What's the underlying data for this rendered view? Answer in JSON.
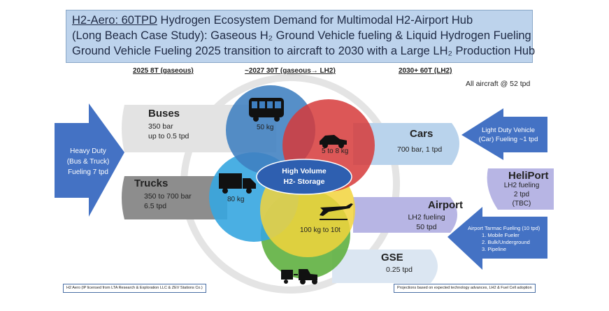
{
  "title": {
    "line1_underlined": "H2-Aero: 60TPD",
    "line1_rest": " Hydrogen Ecosystem Demand for Multimodal H2-Airport Hub",
    "line2": "(Long Beach Case Study): Gaseous H₂ Ground Vehicle fueling & Liquid Hydrogen Fueling",
    "line3": "Ground Vehicle Fueling 2025 transition to aircraft to 2030 with a Large LH₂ Production Hub"
  },
  "timeline": {
    "h1": "2025 8T (gaseous)",
    "h2": "~2027 30T (gaseous→ LH2)",
    "h3": "2030+ 60T (LH2)"
  },
  "note": "All aircraft @ 52 tpd",
  "heavy_duty": {
    "line1": "Heavy Duty",
    "line2": "(Bus & Truck)",
    "line3": "Fueling 7 tpd"
  },
  "light_duty": {
    "line1": "Light Duty Vehicle",
    "line2": "(Car) Fueling ~1 tpd"
  },
  "tarmac": {
    "title": "Airport Tarmac Fueling (10 tpd)",
    "items": [
      "1.    Mobile Fueler",
      "2.    Bulk/Underground",
      "3.    Pipeline"
    ]
  },
  "buses": {
    "title": "Buses",
    "line1": "350 bar",
    "line2": "up to 0.5 tpd",
    "circle": "50 kg"
  },
  "trucks": {
    "title": "Trucks",
    "line1": "350 to 700 bar",
    "line2": "6.5 tpd",
    "circle": "80 kg"
  },
  "cars": {
    "title": "Cars",
    "line1": "700 bar, 1 tpd",
    "circle": "5 to 8 kg"
  },
  "airport": {
    "title": "Airport",
    "line1": "LH2 fueling",
    "line2": "50 tpd",
    "circle": "100 kg to 10t"
  },
  "gse": {
    "title": "GSE",
    "line1": "0.25 tpd"
  },
  "heliport": {
    "title": "HeliPort",
    "line1": "LH2 fueling",
    "line2": "2 tpd",
    "line3": "(TBC)"
  },
  "storage": {
    "line1": "High Volume",
    "line2": "H2- Storage"
  },
  "footer_left": "H2 Aero (IP licensed from LTA Research & Exploration LLC  & ZEV Stations Co.)",
  "footer_right": "Projections based on expected technology advances, LH2 & Fuel Cell adoption",
  "colors": {
    "blue_arrow": "#4472c4",
    "bus_circle": "#3f7fc0",
    "car_circle": "#d63a3a",
    "truck_circle": "#36a6e0",
    "air_circle": "#f2d43c",
    "gse_circle": "#5fb040",
    "storage": "#2e5fb0"
  }
}
